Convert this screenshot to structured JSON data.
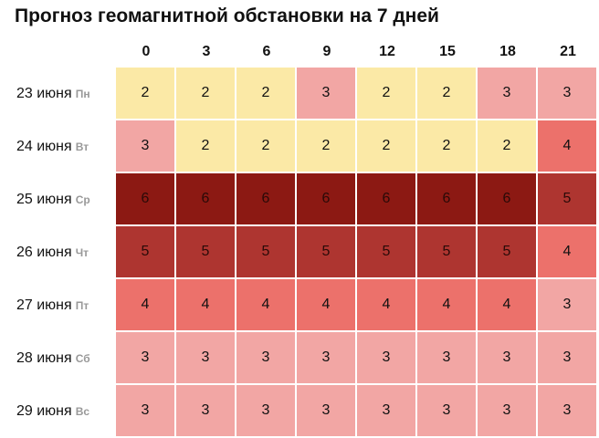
{
  "title": "Прогноз геомагнитной обстановки на 7 дней",
  "chart_data": {
    "type": "heatmap",
    "title": "Прогноз геомагнитной обстановки на 7 дней",
    "x": [
      "0",
      "3",
      "6",
      "9",
      "12",
      "15",
      "18",
      "21"
    ],
    "rows": [
      {
        "date": "23 июня",
        "dow": "Пн",
        "values": [
          2,
          2,
          2,
          3,
          2,
          2,
          3,
          3
        ]
      },
      {
        "date": "24 июня",
        "dow": "Вт",
        "values": [
          3,
          2,
          2,
          2,
          2,
          2,
          2,
          4
        ]
      },
      {
        "date": "25 июня",
        "dow": "Ср",
        "values": [
          6,
          6,
          6,
          6,
          6,
          6,
          6,
          5
        ]
      },
      {
        "date": "26 июня",
        "dow": "Чт",
        "values": [
          5,
          5,
          5,
          5,
          5,
          5,
          5,
          4
        ]
      },
      {
        "date": "27 июня",
        "dow": "Пт",
        "values": [
          4,
          4,
          4,
          4,
          4,
          4,
          4,
          3
        ]
      },
      {
        "date": "28 июня",
        "dow": "Сб",
        "values": [
          3,
          3,
          3,
          3,
          3,
          3,
          3,
          3
        ]
      },
      {
        "date": "29 июня",
        "dow": "Вс",
        "values": [
          3,
          3,
          3,
          3,
          3,
          3,
          3,
          3
        ]
      }
    ],
    "colors": {
      "2": "#fbe9a6",
      "3": "#f2a6a4",
      "4": "#ec716b",
      "5": "#ae3530",
      "6": "#8c1913"
    }
  }
}
